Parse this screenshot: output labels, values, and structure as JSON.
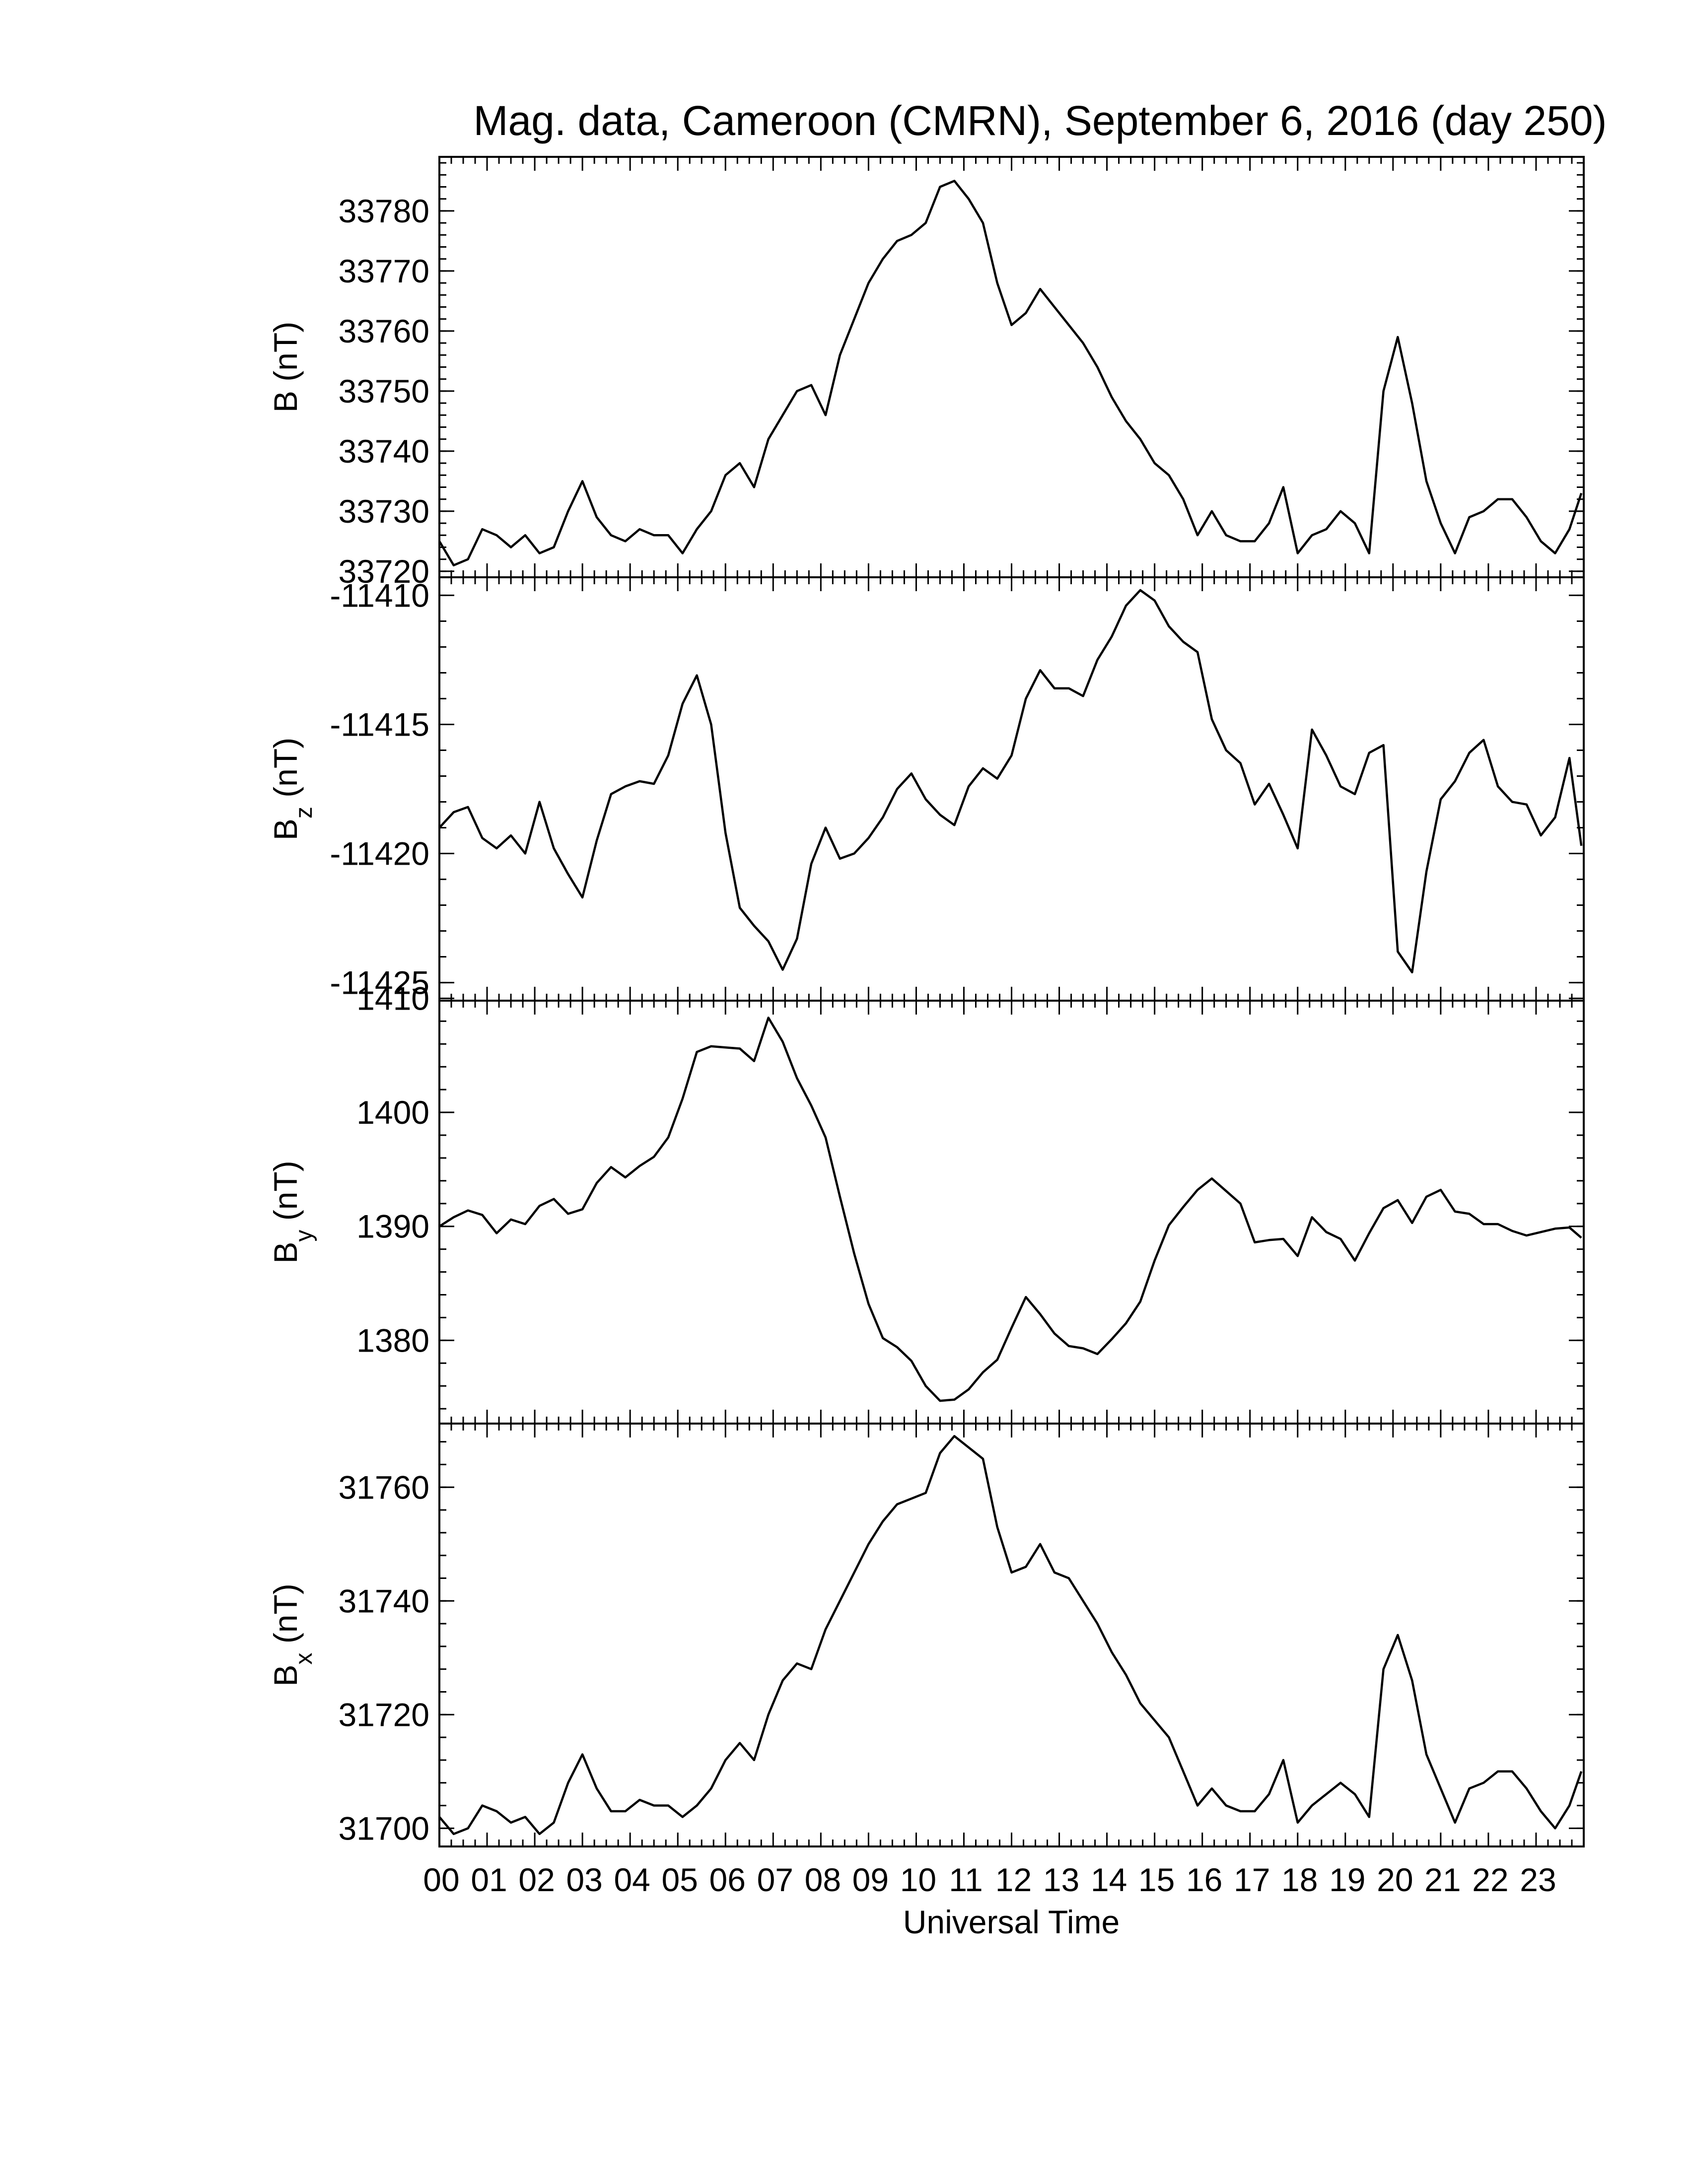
{
  "chart_data": {
    "type": "line",
    "title": "Mag. data, Cameroon (CMRN), September 6, 2016 (day 250)",
    "xlabel": "Universal Time",
    "xlim": [
      0,
      24
    ],
    "x_tick_labels": [
      "00",
      "01",
      "02",
      "03",
      "04",
      "05",
      "06",
      "07",
      "08",
      "09",
      "10",
      "11",
      "12",
      "13",
      "14",
      "15",
      "16",
      "17",
      "18",
      "19",
      "20",
      "21",
      "22",
      "23"
    ],
    "panels": [
      {
        "ylabel_main": "B",
        "ylabel_sub": "",
        "ylabel_unit": "(nT)",
        "ylim": [
          33719,
          33789
        ],
        "yticks": [
          33720,
          33730,
          33740,
          33750,
          33760,
          33770,
          33780
        ],
        "ytick_labels": [
          "33720",
          "33730",
          "33740",
          "33750",
          "33760",
          "33770",
          "33780"
        ],
        "series": [
          {
            "x": [
              0,
              0.3,
              0.6,
              0.9,
              1.2,
              1.5,
              1.8,
              2.1,
              2.4,
              2.7,
              3.0,
              3.3,
              3.6,
              3.9,
              4.2,
              4.5,
              4.8,
              5.1,
              5.4,
              5.7,
              6.0,
              6.3,
              6.6,
              6.9,
              7.2,
              7.5,
              7.8,
              8.1,
              8.4,
              8.7,
              9.0,
              9.3,
              9.6,
              9.9,
              10.2,
              10.5,
              10.8,
              11.1,
              11.4,
              11.7,
              12.0,
              12.3,
              12.6,
              12.9,
              13.2,
              13.5,
              13.8,
              14.1,
              14.4,
              14.7,
              15.0,
              15.3,
              15.6,
              15.9,
              16.2,
              16.5,
              16.8,
              17.1,
              17.4,
              17.7,
              18.0,
              18.3,
              18.6,
              18.9,
              19.2,
              19.5,
              19.8,
              20.1,
              20.4,
              20.7,
              21.0,
              21.3,
              21.6,
              21.9,
              22.2,
              22.5,
              22.8,
              23.1,
              23.4,
              23.7,
              23.95
            ],
            "values": [
              33725,
              33721,
              33722,
              33727,
              33726,
              33724,
              33726,
              33723,
              33724,
              33730,
              33735,
              33729,
              33726,
              33725,
              33727,
              33726,
              33726,
              33723,
              33727,
              33730,
              33736,
              33738,
              33734,
              33742,
              33746,
              33750,
              33751,
              33746,
              33756,
              33762,
              33768,
              33772,
              33775,
              33776,
              33778,
              33784,
              33785,
              33782,
              33778,
              33768,
              33761,
              33763,
              33767,
              33764,
              33761,
              33758,
              33754,
              33749,
              33745,
              33742,
              33738,
              33736,
              33732,
              33726,
              33730,
              33726,
              33725,
              33725,
              33728,
              33734,
              33723,
              33726,
              33727,
              33730,
              33728,
              33723,
              33750,
              33759,
              33748,
              33735,
              33728,
              33723,
              33729,
              33730,
              33732,
              33732,
              33729,
              33725,
              33723,
              33727,
              33733
            ]
          }
        ]
      },
      {
        "ylabel_main": "B",
        "ylabel_sub": "z",
        "ylabel_unit": "(nT)",
        "ylim": [
          -11425.7,
          -11409.3
        ],
        "yticks": [
          -11425,
          -11420,
          -11415,
          -11410
        ],
        "ytick_labels": [
          "-11425",
          "-11420",
          "-11415",
          "-11410"
        ],
        "series": [
          {
            "x": [
              0,
              0.3,
              0.6,
              0.9,
              1.2,
              1.5,
              1.8,
              2.1,
              2.4,
              2.7,
              3.0,
              3.3,
              3.6,
              3.9,
              4.2,
              4.5,
              4.8,
              5.1,
              5.4,
              5.7,
              6.0,
              6.3,
              6.6,
              6.9,
              7.2,
              7.5,
              7.8,
              8.1,
              8.4,
              8.7,
              9.0,
              9.3,
              9.6,
              9.9,
              10.2,
              10.5,
              10.8,
              11.1,
              11.4,
              11.7,
              12.0,
              12.3,
              12.6,
              12.9,
              13.2,
              13.5,
              13.8,
              14.1,
              14.4,
              14.7,
              15.0,
              15.3,
              15.6,
              15.9,
              16.2,
              16.5,
              16.8,
              17.1,
              17.4,
              17.7,
              18.0,
              18.3,
              18.6,
              18.9,
              19.2,
              19.5,
              19.8,
              20.1,
              20.4,
              20.7,
              21.0,
              21.3,
              21.6,
              21.9,
              22.2,
              22.5,
              22.8,
              23.1,
              23.4,
              23.7,
              23.95
            ],
            "values": [
              -11419,
              -11418.4,
              -11418.2,
              -11419.4,
              -11419.8,
              -11419.3,
              -11420,
              -11418,
              -11419.8,
              -11420.8,
              -11421.7,
              -11419.5,
              -11417.7,
              -11417.4,
              -11417.2,
              -11417.3,
              -11416.2,
              -11414.2,
              -11413.1,
              -11415,
              -11419.2,
              -11422.1,
              -11422.8,
              -11423.4,
              -11424.5,
              -11423.3,
              -11420.4,
              -11419,
              -11420.2,
              -11420,
              -11419.4,
              -11418.6,
              -11417.5,
              -11416.9,
              -11417.9,
              -11418.5,
              -11418.9,
              -11417.4,
              -11416.7,
              -11417.1,
              -11416.2,
              -11414,
              -11412.9,
              -11413.6,
              -11413.6,
              -11413.9,
              -11412.5,
              -11411.6,
              -11410.4,
              -11409.8,
              -11410.2,
              -11411.2,
              -11411.8,
              -11412.2,
              -11414.8,
              -11416,
              -11416.5,
              -11418.1,
              -11417.3,
              -11418.5,
              -11419.8,
              -11415.2,
              -11416.2,
              -11417.4,
              -11417.7,
              -11416.1,
              -11415.8,
              -11423.8,
              -11424.6,
              -11420.7,
              -11417.9,
              -11417.2,
              -11416.1,
              -11415.6,
              -11417.4,
              -11418,
              -11418.1,
              -11419.3,
              -11418.6,
              -11416.3,
              -11419.7
            ]
          }
        ]
      },
      {
        "ylabel_main": "B",
        "ylabel_sub": "y",
        "ylabel_unit": "(nT)",
        "ylim": [
          1372.7,
          1409.8
        ],
        "yticks": [
          1380,
          1390,
          1400,
          1410
        ],
        "ytick_labels": [
          "1380",
          "1390",
          "1400",
          "1410"
        ],
        "series": [
          {
            "x": [
              0,
              0.3,
              0.6,
              0.9,
              1.2,
              1.5,
              1.8,
              2.1,
              2.4,
              2.7,
              3.0,
              3.3,
              3.6,
              3.9,
              4.2,
              4.5,
              4.8,
              5.1,
              5.4,
              5.7,
              6.0,
              6.3,
              6.6,
              6.9,
              7.2,
              7.5,
              7.8,
              8.1,
              8.4,
              8.7,
              9.0,
              9.3,
              9.6,
              9.9,
              10.2,
              10.5,
              10.8,
              11.1,
              11.4,
              11.7,
              12.0,
              12.3,
              12.6,
              12.9,
              13.2,
              13.5,
              13.8,
              14.1,
              14.4,
              14.7,
              15.0,
              15.3,
              15.6,
              15.9,
              16.2,
              16.5,
              16.8,
              17.1,
              17.4,
              17.7,
              18.0,
              18.3,
              18.6,
              18.9,
              19.2,
              19.5,
              19.8,
              20.1,
              20.4,
              20.7,
              21.0,
              21.3,
              21.6,
              21.9,
              22.2,
              22.5,
              22.8,
              23.1,
              23.4,
              23.7,
              23.95
            ],
            "values": [
              1390,
              1390.8,
              1391.4,
              1391,
              1389.4,
              1390.6,
              1390.2,
              1391.8,
              1392.4,
              1391.1,
              1391.5,
              1393.8,
              1395.2,
              1394.3,
              1395.3,
              1396.1,
              1397.8,
              1401.2,
              1405.3,
              1405.8,
              1405.7,
              1405.6,
              1404.5,
              1408.3,
              1406.2,
              1403,
              1400.6,
              1397.8,
              1392.6,
              1387.6,
              1383.2,
              1380.2,
              1379.4,
              1378.2,
              1376,
              1374.7,
              1374.8,
              1375.7,
              1377.2,
              1378.3,
              1381.1,
              1383.8,
              1382.3,
              1380.6,
              1379.5,
              1379.3,
              1378.8,
              1380.1,
              1381.5,
              1383.4,
              1387,
              1390.1,
              1391.7,
              1393.2,
              1394.2,
              1393.1,
              1392,
              1388.6,
              1388.8,
              1388.9,
              1387.4,
              1390.8,
              1389.5,
              1388.9,
              1387,
              1389.4,
              1391.6,
              1392.3,
              1390.3,
              1392.6,
              1393.2,
              1391.3,
              1391.1,
              1390.2,
              1390.2,
              1389.6,
              1389.2,
              1389.5,
              1389.8,
              1389.9,
              1389
            ]
          }
        ]
      },
      {
        "ylabel_main": "B",
        "ylabel_sub": "x",
        "ylabel_unit": "(nT)",
        "ylim": [
          31696.8,
          31771.2
        ],
        "yticks": [
          31700,
          31720,
          31740,
          31760
        ],
        "ytick_labels": [
          "31700",
          "31720",
          "31740",
          "31760"
        ],
        "series": [
          {
            "x": [
              0,
              0.3,
              0.6,
              0.9,
              1.2,
              1.5,
              1.8,
              2.1,
              2.4,
              2.7,
              3.0,
              3.3,
              3.6,
              3.9,
              4.2,
              4.5,
              4.8,
              5.1,
              5.4,
              5.7,
              6.0,
              6.3,
              6.6,
              6.9,
              7.2,
              7.5,
              7.8,
              8.1,
              8.4,
              8.7,
              9.0,
              9.3,
              9.6,
              9.9,
              10.2,
              10.5,
              10.8,
              11.1,
              11.4,
              11.7,
              12.0,
              12.3,
              12.6,
              12.9,
              13.2,
              13.5,
              13.8,
              14.1,
              14.4,
              14.7,
              15.0,
              15.3,
              15.6,
              15.9,
              16.2,
              16.5,
              16.8,
              17.1,
              17.4,
              17.7,
              18.0,
              18.3,
              18.6,
              18.9,
              19.2,
              19.5,
              19.8,
              20.1,
              20.4,
              20.7,
              21.0,
              21.3,
              21.6,
              21.9,
              22.2,
              22.5,
              22.8,
              23.1,
              23.4,
              23.7,
              23.95
            ],
            "values": [
              31702,
              31699,
              31700,
              31704,
              31703,
              31701,
              31702,
              31699,
              31701,
              31708,
              31713,
              31707,
              31703,
              31703,
              31705,
              31704,
              31704,
              31702,
              31704,
              31707,
              31712,
              31715,
              31712,
              31720,
              31726,
              31729,
              31728,
              31735,
              31740,
              31745,
              31750,
              31754,
              31757,
              31758,
              31759,
              31766,
              31769,
              31767,
              31765,
              31753,
              31745,
              31746,
              31750,
              31745,
              31744,
              31740,
              31736,
              31731,
              31727,
              31722,
              31719,
              31716,
              31710,
              31704,
              31707,
              31704,
              31703,
              31703,
              31706,
              31712,
              31701,
              31704,
              31706,
              31708,
              31706,
              31702,
              31728,
              31734,
              31726,
              31713,
              31707,
              31701,
              31707,
              31708,
              31710,
              31710,
              31707,
              31703,
              31700,
              31704,
              31710
            ]
          }
        ]
      }
    ]
  }
}
